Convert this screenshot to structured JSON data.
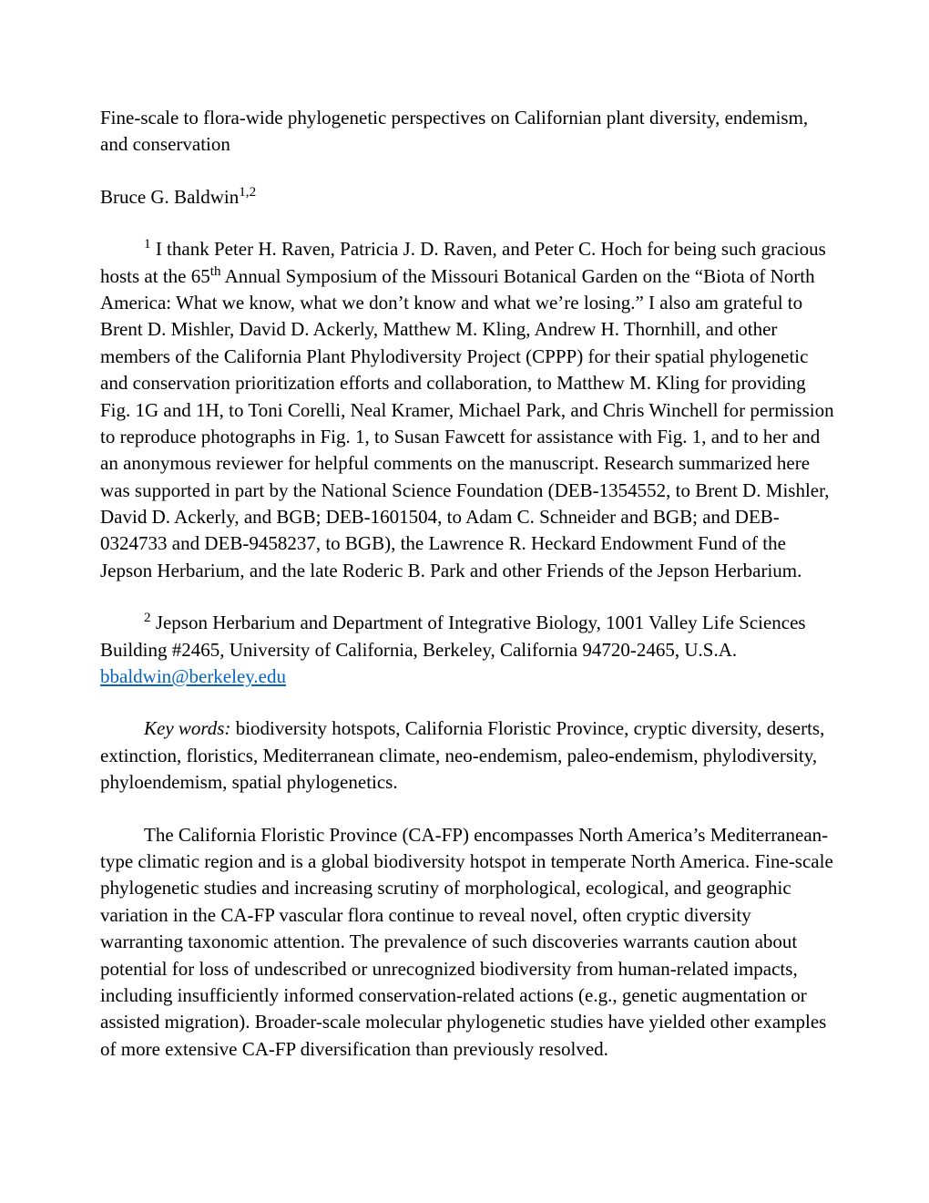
{
  "title": "Fine-scale to flora-wide phylogenetic perspectives on Californian plant diversity, endemism, and conservation",
  "author_name": "Bruce G. Baldwin",
  "author_sup": "1,2",
  "ack_sup": "1",
  "ack_pre": " I thank Peter H. Raven, Patricia J. D. Raven, and Peter C. Hoch for being such gracious hosts at the 65",
  "ack_th": "th",
  "ack_post": " Annual Symposium of the Missouri Botanical Garden on the “Biota of North America: What we know, what we don’t know and what we’re losing.” I also am grateful to Brent D. Mishler, David D. Ackerly, Matthew M. Kling, Andrew H. Thornhill, and other members of the California Plant Phylodiversity Project (CPPP) for their spatial phylogenetic and conservation prioritization efforts and collaboration, to Matthew M. Kling for providing Fig. 1G and 1H, to Toni Corelli, Neal Kramer, Michael Park, and Chris Winchell for permission to reproduce photographs in Fig. 1, to Susan Fawcett for assistance with Fig. 1, and to her and an anonymous reviewer for helpful comments on the manuscript. Research summarized here was supported in part by the National Science Foundation (DEB-1354552, to Brent D. Mishler, David D. Ackerly, and BGB; DEB-1601504, to Adam C. Schneider and BGB; and DEB-0324733 and DEB-9458237, to BGB), the Lawrence R. Heckard Endowment Fund of the Jepson Herbarium, and the late Roderic B. Park and other Friends of the Jepson Herbarium.",
  "affil_sup": "2",
  "affiliation_text": " Jepson Herbarium and Department of Integrative Biology, 1001 Valley Life Sciences Building #2465, University of California, Berkeley, California 94720-2465, U.S.A. ",
  "email": "bbaldwin@berkeley.edu",
  "keywords_label": "Key words:",
  "keywords_text": " biodiversity hotspots, California Floristic Province, cryptic diversity, deserts, extinction, floristics, Mediterranean climate, neo-endemism, paleo-endemism, phylodiversity, phyloendemism, spatial phylogenetics.",
  "abstract_text": "The California Floristic Province (CA-FP) encompasses North America’s Mediterranean-type climatic region and is a global biodiversity hotspot in temperate North America. Fine-scale phylogenetic studies and increasing scrutiny of morphological, ecological, and geographic variation in the CA-FP vascular flora continue to reveal novel, often cryptic diversity warranting taxonomic attention. The prevalence of such discoveries warrants caution about potential for loss of undescribed or unrecognized biodiversity from human-related impacts, including insufficiently informed conservation-related actions (e.g., genetic augmentation or assisted migration). Broader-scale molecular phylogenetic studies have yielded other examples of more extensive CA-FP diversification than previously resolved."
}
